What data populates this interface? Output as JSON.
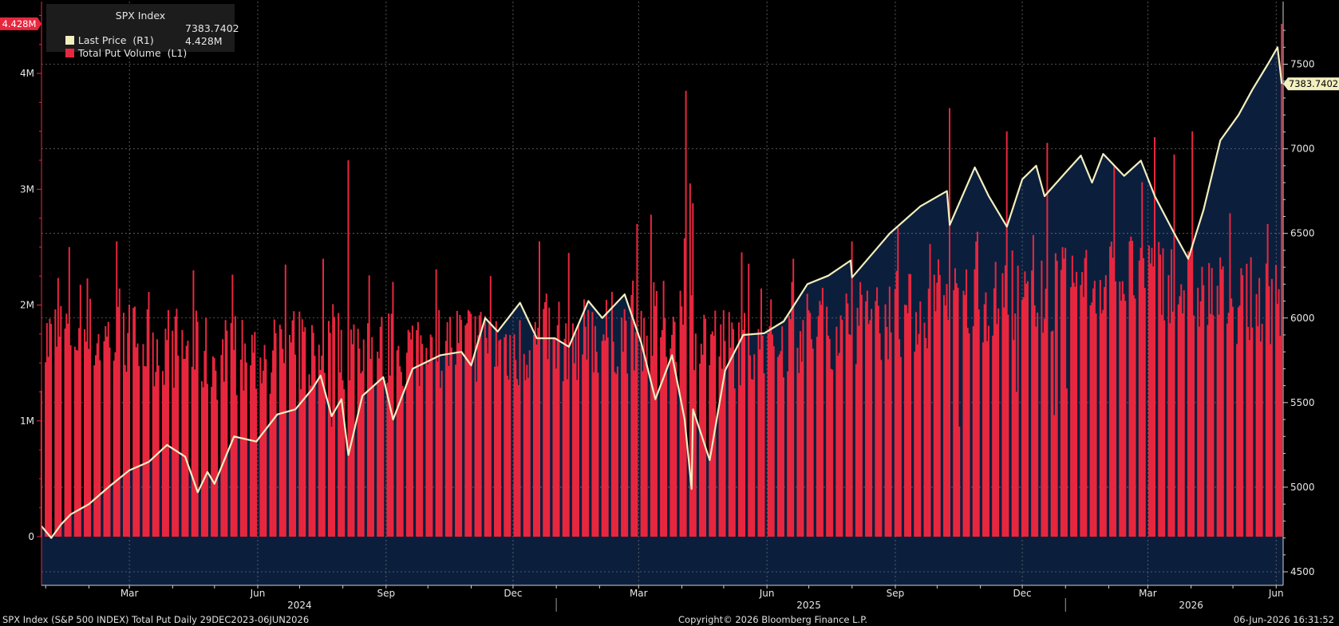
{
  "legend": {
    "title": "SPX Index",
    "price_label": "Last Price  (R1)",
    "price_value": "7383.7402",
    "volume_label": "Total Put Volume  (L1)",
    "volume_value": "4.428M"
  },
  "tags": {
    "left": "4.428M",
    "right": "7383.7402"
  },
  "footer": {
    "left": "SPX Index (S&P 500 INDEX) Total Put Daily 29DEC2023-06JUN2026",
    "center": "Copyright© 2026 Bloomberg Finance L.P.",
    "right": "06-Jun-2026 16:31:52"
  },
  "colors": {
    "volume": "#e8273f",
    "price": "#f3efbf",
    "fill": "#0b1f3d",
    "tag": "#f3efbf"
  },
  "chart_data": {
    "type": "bar+line",
    "x_range": [
      "2023-12-29",
      "2026-06-06"
    ],
    "x_ticks": [
      {
        "date": "2024-03-01",
        "label": "Mar"
      },
      {
        "date": "2024-06-01",
        "label": "Jun"
      },
      {
        "date": "2024-09-01",
        "label": "Sep"
      },
      {
        "date": "2024-12-01",
        "label": "Dec"
      },
      {
        "date": "2025-03-01",
        "label": "Mar"
      },
      {
        "date": "2025-06-01",
        "label": "Jun"
      },
      {
        "date": "2025-09-01",
        "label": "Sep"
      },
      {
        "date": "2025-12-01",
        "label": "Dec"
      },
      {
        "date": "2026-03-01",
        "label": "Mar"
      },
      {
        "date": "2026-06-01",
        "label": "Jun"
      }
    ],
    "year_labels": [
      {
        "date": "2024-07-01",
        "label": "2024"
      },
      {
        "date": "2025-07-01",
        "label": "2025"
      },
      {
        "date": "2026-04-01",
        "label": "2026"
      }
    ],
    "year_dividers": [
      "2025-01-01",
      "2026-01-01"
    ],
    "left_axis": {
      "ylim": [
        -0.42,
        4.62
      ],
      "ticks": [
        0,
        1,
        2,
        3,
        4
      ],
      "tick_labels": [
        "0",
        "1M",
        "2M",
        "3M",
        "4M"
      ],
      "unit": "millions"
    },
    "right_axis": {
      "ylim": [
        4420,
        7870
      ],
      "ticks": [
        4500,
        5000,
        5500,
        6000,
        6500,
        7000,
        7500
      ],
      "tick_labels": [
        "4500",
        "5000",
        "5500",
        "6000",
        "6500",
        "7000",
        "7500"
      ]
    },
    "series": [
      {
        "name": "Total Put Volume",
        "axis": "left",
        "type": "bar",
        "baseline_points": [
          [
            "2023-12-29",
            1.6
          ],
          [
            "2024-01-15",
            1.75
          ],
          [
            "2024-02-01",
            1.7
          ],
          [
            "2024-03-01",
            1.65
          ],
          [
            "2024-04-01",
            1.6
          ],
          [
            "2024-05-01",
            1.5
          ],
          [
            "2024-06-01",
            1.5
          ],
          [
            "2024-07-01",
            1.55
          ],
          [
            "2024-08-01",
            1.6
          ],
          [
            "2024-09-01",
            1.55
          ],
          [
            "2024-10-01",
            1.6
          ],
          [
            "2024-11-01",
            1.65
          ],
          [
            "2024-12-01",
            1.6
          ],
          [
            "2025-01-01",
            1.65
          ],
          [
            "2025-02-01",
            1.7
          ],
          [
            "2025-03-01",
            1.75
          ],
          [
            "2025-04-01",
            1.85
          ],
          [
            "2025-05-01",
            1.6
          ],
          [
            "2025-06-01",
            1.65
          ],
          [
            "2025-07-01",
            1.75
          ],
          [
            "2025-08-01",
            1.8
          ],
          [
            "2025-09-01",
            1.85
          ],
          [
            "2025-10-01",
            1.95
          ],
          [
            "2025-11-01",
            2.0
          ],
          [
            "2025-12-01",
            2.0
          ],
          [
            "2026-01-01",
            2.1
          ],
          [
            "2026-02-01",
            2.2
          ],
          [
            "2026-03-01",
            2.25
          ],
          [
            "2026-04-01",
            2.1
          ],
          [
            "2026-05-01",
            2.0
          ],
          [
            "2026-06-06",
            2.0
          ]
        ],
        "spikes": [
          [
            "2024-01-18",
            2.5
          ],
          [
            "2024-02-21",
            2.55
          ],
          [
            "2024-04-16",
            2.3
          ],
          [
            "2024-06-21",
            2.35
          ],
          [
            "2024-07-18",
            2.4
          ],
          [
            "2024-08-05",
            3.25
          ],
          [
            "2024-09-06",
            2.2
          ],
          [
            "2024-11-15",
            2.25
          ],
          [
            "2024-12-20",
            2.55
          ],
          [
            "2025-01-10",
            2.45
          ],
          [
            "2025-02-28",
            2.7
          ],
          [
            "2025-03-10",
            2.78
          ],
          [
            "2025-04-04",
            3.85
          ],
          [
            "2025-04-07",
            3.05
          ],
          [
            "2025-04-09",
            2.88
          ],
          [
            "2025-06-20",
            2.4
          ],
          [
            "2025-08-01",
            2.55
          ],
          [
            "2025-10-10",
            3.7
          ],
          [
            "2025-11-20",
            3.5
          ],
          [
            "2025-12-19",
            3.4
          ],
          [
            "2026-02-05",
            3.2
          ],
          [
            "2026-03-06",
            3.45
          ],
          [
            "2026-03-20",
            3.3
          ],
          [
            "2026-04-02",
            3.5
          ],
          [
            "2026-06-05",
            4.428
          ]
        ],
        "dips": [
          [
            "2024-07-24",
            0.95
          ],
          [
            "2025-10-17",
            0.95
          ],
          [
            "2025-11-27",
            1.25
          ],
          [
            "2025-12-24",
            1.05
          ],
          [
            "2026-01-02",
            1.28
          ]
        ],
        "last": 4.428
      },
      {
        "name": "Last Price",
        "axis": "right",
        "type": "line",
        "points": [
          [
            "2023-12-29",
            4770
          ],
          [
            "2024-01-05",
            4700
          ],
          [
            "2024-01-12",
            4780
          ],
          [
            "2024-01-19",
            4840
          ],
          [
            "2024-02-01",
            4900
          ],
          [
            "2024-02-15",
            5000
          ],
          [
            "2024-03-01",
            5100
          ],
          [
            "2024-03-15",
            5150
          ],
          [
            "2024-03-28",
            5250
          ],
          [
            "2024-04-10",
            5180
          ],
          [
            "2024-04-19",
            4970
          ],
          [
            "2024-04-26",
            5090
          ],
          [
            "2024-05-01",
            5020
          ],
          [
            "2024-05-15",
            5300
          ],
          [
            "2024-05-31",
            5270
          ],
          [
            "2024-06-15",
            5430
          ],
          [
            "2024-06-28",
            5460
          ],
          [
            "2024-07-10",
            5580
          ],
          [
            "2024-07-16",
            5660
          ],
          [
            "2024-07-24",
            5420
          ],
          [
            "2024-07-31",
            5520
          ],
          [
            "2024-08-05",
            5190
          ],
          [
            "2024-08-15",
            5540
          ],
          [
            "2024-08-30",
            5650
          ],
          [
            "2024-09-06",
            5400
          ],
          [
            "2024-09-20",
            5700
          ],
          [
            "2024-10-10",
            5780
          ],
          [
            "2024-10-25",
            5800
          ],
          [
            "2024-11-01",
            5720
          ],
          [
            "2024-11-11",
            6000
          ],
          [
            "2024-11-20",
            5920
          ],
          [
            "2024-12-06",
            6090
          ],
          [
            "2024-12-18",
            5880
          ],
          [
            "2024-12-31",
            5880
          ],
          [
            "2025-01-10",
            5830
          ],
          [
            "2025-01-24",
            6100
          ],
          [
            "2025-02-03",
            6000
          ],
          [
            "2025-02-19",
            6140
          ],
          [
            "2025-03-03",
            5850
          ],
          [
            "2025-03-13",
            5520
          ],
          [
            "2025-03-25",
            5780
          ],
          [
            "2025-04-03",
            5400
          ],
          [
            "2025-04-08",
            4990
          ],
          [
            "2025-04-09",
            5460
          ],
          [
            "2025-04-21",
            5160
          ],
          [
            "2025-05-02",
            5690
          ],
          [
            "2025-05-15",
            5900
          ],
          [
            "2025-05-30",
            5910
          ],
          [
            "2025-06-13",
            5980
          ],
          [
            "2025-06-30",
            6200
          ],
          [
            "2025-07-15",
            6250
          ],
          [
            "2025-07-31",
            6340
          ],
          [
            "2025-08-01",
            6240
          ],
          [
            "2025-08-28",
            6500
          ],
          [
            "2025-09-19",
            6660
          ],
          [
            "2025-10-08",
            6750
          ],
          [
            "2025-10-10",
            6550
          ],
          [
            "2025-10-28",
            6890
          ],
          [
            "2025-11-07",
            6720
          ],
          [
            "2025-11-20",
            6540
          ],
          [
            "2025-12-01",
            6820
          ],
          [
            "2025-12-11",
            6900
          ],
          [
            "2025-12-17",
            6720
          ],
          [
            "2025-12-31",
            6850
          ],
          [
            "2026-01-12",
            6960
          ],
          [
            "2026-01-20",
            6800
          ],
          [
            "2026-01-28",
            6970
          ],
          [
            "2026-02-12",
            6840
          ],
          [
            "2026-02-24",
            6930
          ],
          [
            "2026-03-06",
            6720
          ],
          [
            "2026-03-20",
            6500
          ],
          [
            "2026-03-30",
            6350
          ],
          [
            "2026-04-10",
            6640
          ],
          [
            "2026-04-22",
            7050
          ],
          [
            "2026-05-05",
            7200
          ],
          [
            "2026-05-15",
            7350
          ],
          [
            "2026-05-26",
            7500
          ],
          [
            "2026-06-02",
            7600
          ],
          [
            "2026-06-05",
            7383.74
          ]
        ],
        "last": 7383.74
      }
    ]
  }
}
